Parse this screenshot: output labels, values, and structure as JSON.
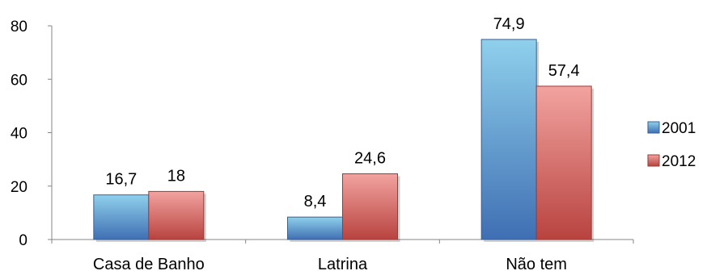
{
  "chart_data": {
    "type": "bar",
    "title": "",
    "xlabel": "",
    "ylabel": "",
    "categories": [
      "Casa de Banho",
      "Latrina",
      "Não tem"
    ],
    "series": [
      {
        "name": "2001",
        "values": [
          16.7,
          8.4,
          74.9
        ],
        "labels": [
          "16,7",
          "8,4",
          "74,9"
        ],
        "color": "#5b9bd5"
      },
      {
        "name": "2012",
        "values": [
          18,
          24.6,
          57.4
        ],
        "labels": [
          "18",
          "24,6",
          "57,4"
        ],
        "color": "#d9605c"
      }
    ],
    "ylim": [
      0,
      80
    ],
    "yticks": [
      "0",
      "20",
      "40",
      "60",
      "80"
    ],
    "ytick_values": [
      0,
      20,
      40,
      60,
      80
    ],
    "grid": false,
    "legend_position": "right"
  }
}
